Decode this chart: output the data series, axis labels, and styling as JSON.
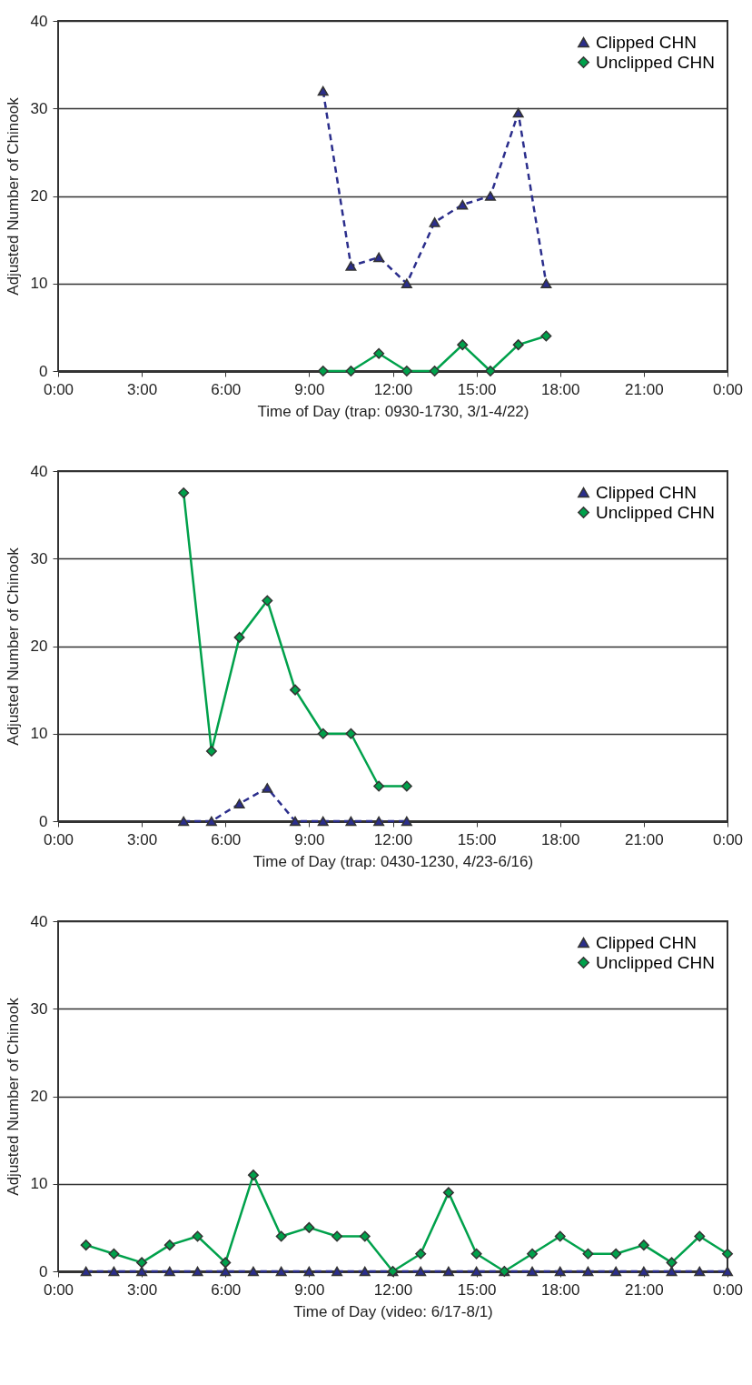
{
  "chart_data": [
    {
      "type": "line",
      "xlabel": "Time of Day (trap: 0930-1730, 3/1-4/22)",
      "ylabel": "Adjusted Number of Chinook",
      "x": [
        9.5,
        10.5,
        11.5,
        12.5,
        13.5,
        14.5,
        15.5,
        16.5,
        17.5
      ],
      "series": [
        {
          "name": "Clipped CHN",
          "color": "#2b2e8c",
          "marker": "triangle",
          "line_style": "dashed",
          "values": [
            32,
            12,
            13,
            10,
            17,
            19,
            20,
            29.5,
            10
          ]
        },
        {
          "name": "Unclipped CHN",
          "color": "#00a14b",
          "marker": "diamond",
          "line_style": "solid",
          "values": [
            0,
            0,
            2,
            0,
            0,
            3,
            0,
            3,
            4
          ]
        }
      ],
      "xlim": [
        0,
        24
      ],
      "xticks": [
        {
          "value": 0,
          "label": "0:00"
        },
        {
          "value": 3,
          "label": "3:00"
        },
        {
          "value": 6,
          "label": "6:00"
        },
        {
          "value": 9,
          "label": "9:00"
        },
        {
          "value": 12,
          "label": "12:00"
        },
        {
          "value": 15,
          "label": "15:00"
        },
        {
          "value": 18,
          "label": "18:00"
        },
        {
          "value": 21,
          "label": "21:00"
        },
        {
          "value": 24,
          "label": "0:00"
        }
      ],
      "ylim": [
        0,
        40
      ],
      "yticks": [
        0,
        10,
        20,
        30,
        40
      ],
      "grid": "y",
      "legend": "top right"
    },
    {
      "type": "line",
      "xlabel": "Time of Day (trap: 0430-1230, 4/23-6/16)",
      "ylabel": "Adjusted Number of Chinook",
      "x": [
        4.5,
        5.5,
        6.5,
        7.5,
        8.5,
        9.5,
        10.5,
        11.5,
        12.5
      ],
      "series": [
        {
          "name": "Clipped CHN",
          "color": "#2b2e8c",
          "marker": "triangle",
          "line_style": "dashed",
          "values": [
            0,
            0,
            2,
            3.8,
            0,
            0,
            0,
            0,
            0
          ]
        },
        {
          "name": "Unclipped CHN",
          "color": "#00a14b",
          "marker": "diamond",
          "line_style": "solid",
          "values": [
            37.5,
            8,
            21,
            25.2,
            15,
            10,
            10,
            4,
            4
          ]
        }
      ],
      "xlim": [
        0,
        24
      ],
      "xticks": [
        {
          "value": 0,
          "label": "0:00"
        },
        {
          "value": 3,
          "label": "3:00"
        },
        {
          "value": 6,
          "label": "6:00"
        },
        {
          "value": 9,
          "label": "9:00"
        },
        {
          "value": 12,
          "label": "12:00"
        },
        {
          "value": 15,
          "label": "15:00"
        },
        {
          "value": 18,
          "label": "18:00"
        },
        {
          "value": 21,
          "label": "21:00"
        },
        {
          "value": 24,
          "label": "0:00"
        }
      ],
      "ylim": [
        0,
        40
      ],
      "yticks": [
        0,
        10,
        20,
        30,
        40
      ],
      "grid": "y",
      "legend": "top right"
    },
    {
      "type": "line",
      "xlabel": "Time of Day (video: 6/17-8/1)",
      "ylabel": "Adjusted Number of Chinook",
      "x": [
        1,
        2,
        3,
        4,
        5,
        6,
        7,
        8,
        9,
        10,
        11,
        12,
        13,
        14,
        15,
        16,
        17,
        18,
        19,
        20,
        21,
        22,
        23,
        24
      ],
      "series": [
        {
          "name": "Clipped CHN",
          "color": "#2b2e8c",
          "marker": "triangle",
          "line_style": "dashed",
          "values": [
            0,
            0,
            0,
            0,
            0,
            0,
            0,
            0,
            0,
            0,
            0,
            0,
            0,
            0,
            0,
            0,
            0,
            0,
            0,
            0,
            0,
            0,
            0,
            0
          ]
        },
        {
          "name": "Unclipped CHN",
          "color": "#00a14b",
          "marker": "diamond",
          "line_style": "solid",
          "values": [
            3,
            2,
            1,
            3,
            4,
            1,
            11,
            4,
            5,
            4,
            4,
            0,
            2,
            9,
            2,
            0,
            2,
            4,
            2,
            2,
            3,
            1,
            4,
            2
          ]
        }
      ],
      "xlim": [
        0,
        24
      ],
      "xticks": [
        {
          "value": 0,
          "label": "0:00"
        },
        {
          "value": 3,
          "label": "3:00"
        },
        {
          "value": 6,
          "label": "6:00"
        },
        {
          "value": 9,
          "label": "9:00"
        },
        {
          "value": 12,
          "label": "12:00"
        },
        {
          "value": 15,
          "label": "15:00"
        },
        {
          "value": 18,
          "label": "18:00"
        },
        {
          "value": 21,
          "label": "21:00"
        },
        {
          "value": 24,
          "label": "0:00"
        }
      ],
      "ylim": [
        0,
        40
      ],
      "yticks": [
        0,
        10,
        20,
        30,
        40
      ],
      "grid": "y",
      "legend": "top right"
    }
  ]
}
